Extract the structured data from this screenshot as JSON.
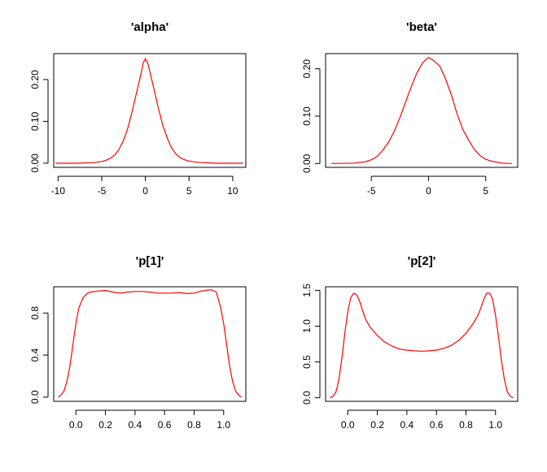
{
  "chart_data": [
    {
      "type": "line",
      "title": "'alpha'",
      "xlabel": "",
      "ylabel": "",
      "xlim": [
        -10.5,
        11.5
      ],
      "ylim": [
        -0.01,
        0.262
      ],
      "xticks": [
        -10,
        -5,
        0,
        5,
        10
      ],
      "yticks": [
        0.0,
        0.1,
        0.2
      ],
      "xtick_labels": [
        "-10",
        "-5",
        "0",
        "5",
        "10"
      ],
      "ytick_labels": [
        "0.00",
        "0.10",
        "0.20"
      ],
      "grid": false,
      "series": [
        {
          "color": "#ff0000",
          "x": [
            -10.3,
            -8,
            -6,
            -5,
            -4.5,
            -4,
            -3.5,
            -3,
            -2.5,
            -2,
            -1.5,
            -1,
            -0.5,
            -0.25,
            0,
            0.25,
            0.5,
            1,
            1.5,
            2,
            2.5,
            3,
            3.5,
            4,
            4.5,
            5,
            6,
            8,
            10,
            11.2
          ],
          "y": [
            0.0,
            0.0,
            0.001,
            0.004,
            0.007,
            0.012,
            0.02,
            0.034,
            0.055,
            0.085,
            0.125,
            0.17,
            0.215,
            0.24,
            0.25,
            0.24,
            0.22,
            0.175,
            0.13,
            0.09,
            0.06,
            0.036,
            0.022,
            0.013,
            0.008,
            0.005,
            0.002,
            0.0,
            0.0,
            0.0
          ]
        }
      ]
    },
    {
      "type": "line",
      "title": "'beta'",
      "xlabel": "",
      "ylabel": "",
      "xlim": [
        -9.0,
        7.8
      ],
      "ylim": [
        -0.008,
        0.232
      ],
      "xticks": [
        -5,
        0,
        5
      ],
      "yticks": [
        0.0,
        0.1,
        0.2
      ],
      "xtick_labels": [
        "-5",
        "0",
        "5"
      ],
      "ytick_labels": [
        "0.00",
        "0.10",
        "0.20"
      ],
      "grid": false,
      "series": [
        {
          "color": "#ff0000",
          "x": [
            -8.5,
            -6.5,
            -5.5,
            -5,
            -4.5,
            -4,
            -3.5,
            -3,
            -2.5,
            -2,
            -1.5,
            -1,
            -0.5,
            0,
            0.3,
            0.6,
            1,
            1.5,
            2,
            2.5,
            3,
            3.5,
            4,
            4.5,
            5,
            5.5,
            6.5,
            7.3
          ],
          "y": [
            0.0,
            0.001,
            0.004,
            0.008,
            0.015,
            0.028,
            0.045,
            0.068,
            0.097,
            0.13,
            0.163,
            0.192,
            0.213,
            0.224,
            0.22,
            0.214,
            0.205,
            0.178,
            0.145,
            0.105,
            0.072,
            0.05,
            0.03,
            0.017,
            0.009,
            0.005,
            0.001,
            0.0
          ]
        }
      ]
    },
    {
      "type": "line",
      "title": "'p[1]'",
      "xlabel": "",
      "ylabel": "",
      "xlim": [
        -0.15,
        1.15
      ],
      "ylim": [
        -0.04,
        1.05
      ],
      "xticks": [
        0.0,
        0.2,
        0.4,
        0.6,
        0.8,
        1.0
      ],
      "yticks": [
        0.0,
        0.4,
        0.8
      ],
      "xtick_labels": [
        "0.0",
        "0.2",
        "0.4",
        "0.6",
        "0.8",
        "1.0"
      ],
      "ytick_labels": [
        "0.0",
        "0.4",
        "0.8"
      ],
      "grid": false,
      "series": [
        {
          "color": "#ff0000",
          "x": [
            -0.12,
            -0.1,
            -0.08,
            -0.06,
            -0.04,
            -0.02,
            0.0,
            0.02,
            0.05,
            0.08,
            0.1,
            0.15,
            0.2,
            0.25,
            0.3,
            0.35,
            0.4,
            0.45,
            0.5,
            0.55,
            0.6,
            0.65,
            0.7,
            0.75,
            0.8,
            0.85,
            0.9,
            0.92,
            0.95,
            0.98,
            1.0,
            1.02,
            1.04,
            1.06,
            1.08,
            1.1,
            1.12
          ],
          "y": [
            0.0,
            0.02,
            0.06,
            0.15,
            0.3,
            0.5,
            0.7,
            0.85,
            0.95,
            0.99,
            1.0,
            1.01,
            1.015,
            1.0,
            0.99,
            1.0,
            1.005,
            1.005,
            1.0,
            0.99,
            0.99,
            0.99,
            0.995,
            0.985,
            0.99,
            1.01,
            1.02,
            1.02,
            1.0,
            0.85,
            0.7,
            0.5,
            0.3,
            0.15,
            0.06,
            0.02,
            0.0
          ]
        }
      ]
    },
    {
      "type": "line",
      "title": "'p[2]'",
      "xlabel": "",
      "ylabel": "",
      "xlim": [
        -0.15,
        1.15
      ],
      "ylim": [
        -0.05,
        1.55
      ],
      "xticks": [
        0.0,
        0.2,
        0.4,
        0.6,
        0.8,
        1.0
      ],
      "yticks": [
        0.0,
        0.5,
        1.0,
        1.5
      ],
      "xtick_labels": [
        "0.0",
        "0.2",
        "0.4",
        "0.6",
        "0.8",
        "1.0"
      ],
      "ytick_labels": [
        "0.0",
        "0.5",
        "1.0",
        "1.5"
      ],
      "grid": false,
      "series": [
        {
          "color": "#ff0000",
          "x": [
            -0.12,
            -0.1,
            -0.08,
            -0.06,
            -0.04,
            -0.02,
            0.0,
            0.02,
            0.04,
            0.06,
            0.08,
            0.1,
            0.12,
            0.15,
            0.2,
            0.25,
            0.3,
            0.35,
            0.4,
            0.45,
            0.5,
            0.55,
            0.6,
            0.65,
            0.7,
            0.75,
            0.8,
            0.85,
            0.88,
            0.9,
            0.92,
            0.94,
            0.96,
            0.98,
            1.0,
            1.02,
            1.04,
            1.06,
            1.08,
            1.1,
            1.12
          ],
          "y": [
            0.0,
            0.02,
            0.08,
            0.25,
            0.55,
            0.9,
            1.2,
            1.4,
            1.46,
            1.44,
            1.35,
            1.22,
            1.1,
            0.99,
            0.87,
            0.78,
            0.72,
            0.68,
            0.665,
            0.655,
            0.65,
            0.655,
            0.665,
            0.69,
            0.73,
            0.8,
            0.9,
            1.04,
            1.15,
            1.25,
            1.37,
            1.46,
            1.46,
            1.38,
            1.15,
            0.85,
            0.52,
            0.25,
            0.08,
            0.02,
            0.0
          ]
        }
      ]
    }
  ]
}
